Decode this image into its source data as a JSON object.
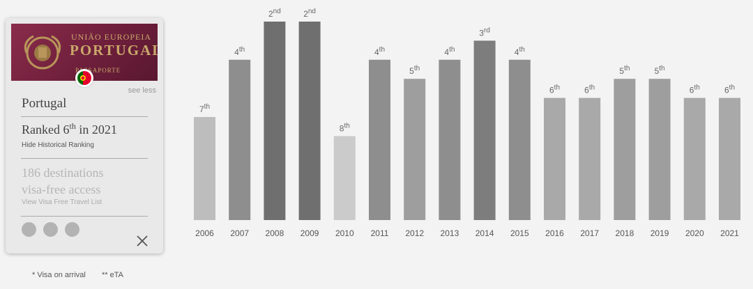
{
  "card": {
    "passport_line1": "UNIÃO EUROPEIA",
    "passport_line2": "PORTUGAL",
    "passport_line3": "PASSAPORTE",
    "see_less": "see less",
    "country": "Portugal",
    "ranked_prefix": "Ranked 6",
    "ranked_suffix": "th",
    "ranked_year": " in 2021",
    "hide_historical": "Hide Historical Ranking",
    "destinations_line1": "186 destinations",
    "destinations_line2": "visa-free access",
    "view_list": "View Visa Free Travel List",
    "flag_colors": [
      "#006600",
      "#e4002b"
    ]
  },
  "footnotes": [
    "* Visa on arrival",
    "** eTA"
  ],
  "chart_data": {
    "type": "bar",
    "title": "",
    "xlabel": "",
    "ylabel": "",
    "categories": [
      "2006",
      "2007",
      "2008",
      "2009",
      "2010",
      "2011",
      "2012",
      "2013",
      "2014",
      "2015",
      "2016",
      "2017",
      "2018",
      "2019",
      "2020",
      "2021"
    ],
    "values": [
      7,
      4,
      2,
      2,
      8,
      4,
      5,
      4,
      3,
      4,
      6,
      6,
      5,
      5,
      6,
      6
    ],
    "rank_numbers": [
      "7",
      "4",
      "2",
      "2",
      "8",
      "4",
      "5",
      "4",
      "3",
      "4",
      "6",
      "6",
      "5",
      "5",
      "6",
      "6"
    ],
    "rank_suffixes": [
      "th",
      "th",
      "nd",
      "nd",
      "th",
      "th",
      "th",
      "th",
      "rd",
      "th",
      "th",
      "th",
      "th",
      "th",
      "th",
      "th"
    ],
    "bar_colors": [
      "#bdbdbd",
      "#8e8e8e",
      "#6f6f70",
      "#6f6f70",
      "#cbcbcb",
      "#8e8e8e",
      "#9e9e9e",
      "#8e8e8e",
      "#7d7d7e",
      "#8e8e8e",
      "#a9a9a9",
      "#a9a9a9",
      "#9e9e9e",
      "#9e9e9e",
      "#a9a9a9",
      "#a9a9a9"
    ],
    "ylim": [
      1,
      10
    ],
    "grid": false,
    "legend": "none"
  }
}
